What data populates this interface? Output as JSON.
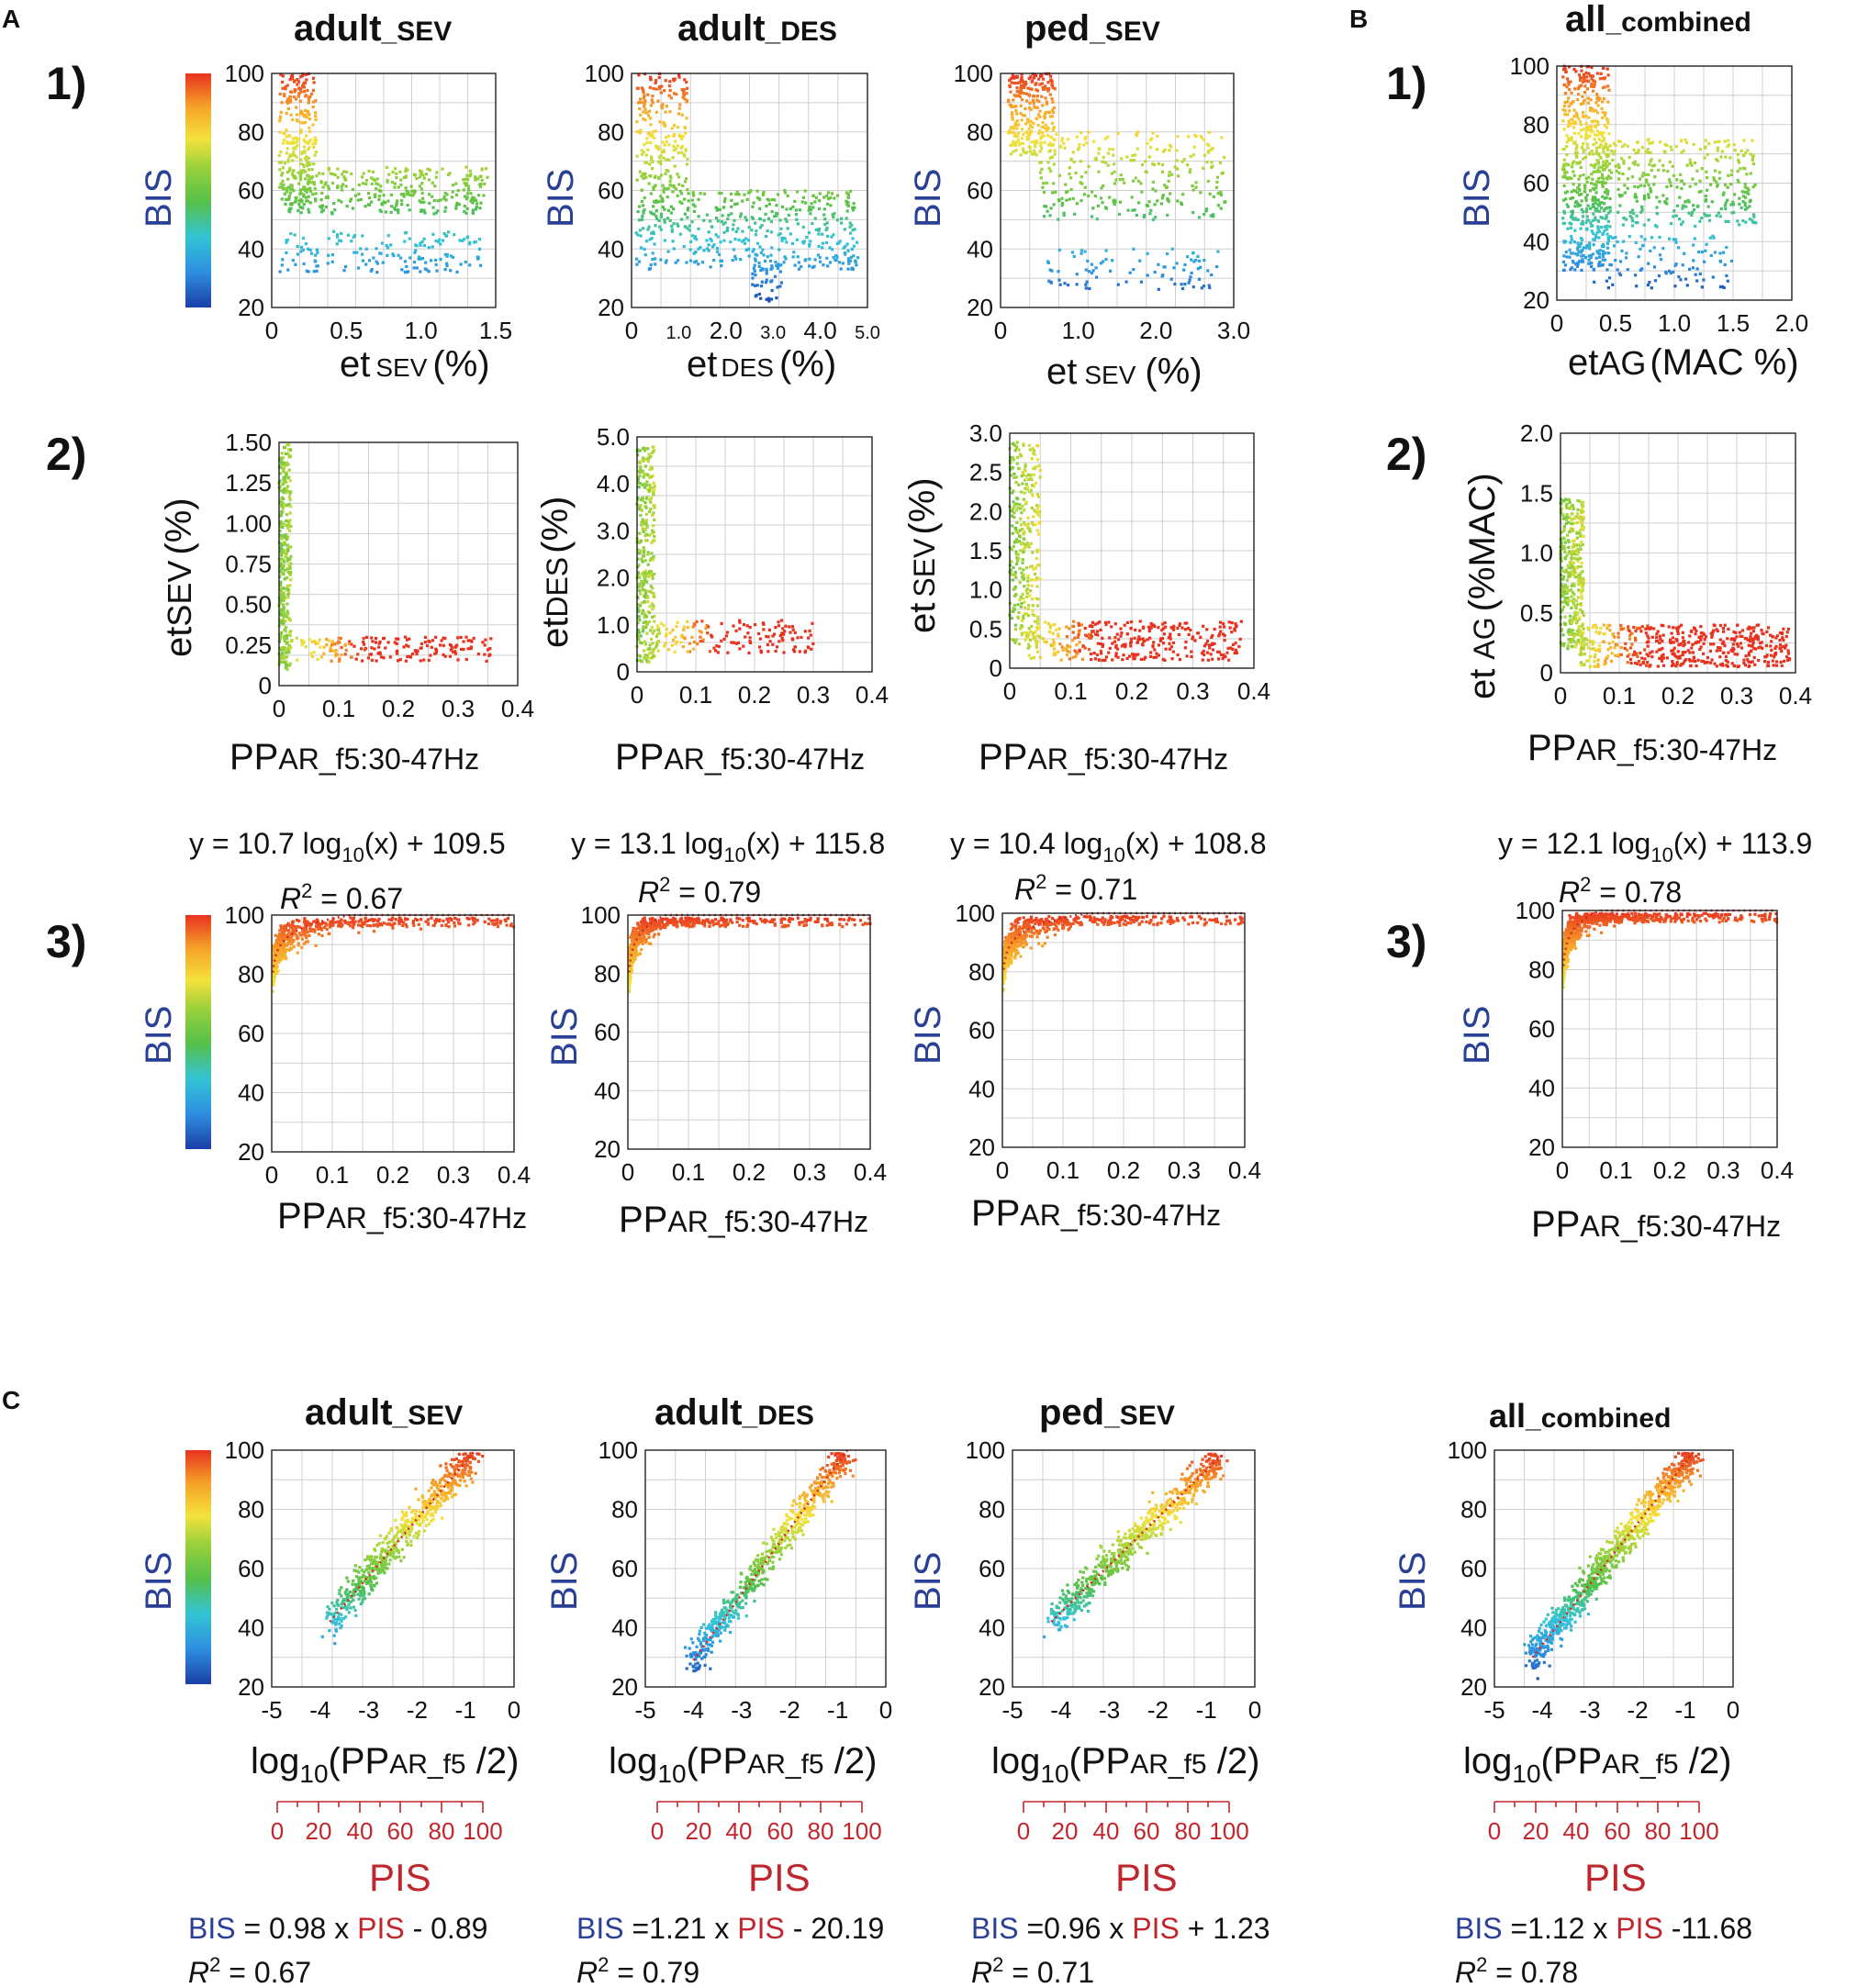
{
  "panel_labels": {
    "A": "A",
    "B": "B",
    "C": "C"
  },
  "row_labels": {
    "r1": "1)",
    "r2": "2)",
    "r3": "3)"
  },
  "column_titles": [
    {
      "main": "adult",
      "sub": "_SEV"
    },
    {
      "main": "adult",
      "sub": "_DES"
    },
    {
      "main": "ped",
      "sub": "_SEV"
    },
    {
      "main": "all",
      "sub": "_combined"
    }
  ],
  "colors": {
    "bis_label": "#2a3f96",
    "pis_label": "#c0272d",
    "fit_line": "#d42a1e",
    "colorbar": [
      "#1a3fa8",
      "#2e8ee0",
      "#33c4d6",
      "#55c04a",
      "#9ad13b",
      "#f4e23c",
      "#f6a128",
      "#e8321f"
    ]
  },
  "labels": {
    "bis": "BIS",
    "pis": "PIS",
    "pp": "PP",
    "pp_sub": "AR_f5:30-47Hz",
    "et": "et",
    "sev_sub": "SEV",
    "des_sub": "DES",
    "ag_sub": "AG",
    "pct": "(%)",
    "mac_pct": "(MAC %)",
    "pct_mac": "(%MAC)",
    "log_prefix": "log",
    "log_sub": "10",
    "log_open": "(PP",
    "log_sub2": "AR_f5",
    "log_close": " /2)",
    "r2_prefix": "R",
    "r2_sup": "2"
  },
  "equations_row3": [
    {
      "lhs": "y = 10.7 log",
      "sub": "10",
      "rhs": "(x) + 109.5",
      "r2": " = 0.67"
    },
    {
      "lhs": "y = 13.1 log",
      "sub": "10",
      "rhs": "(x) + 115.8",
      "r2": " = 0.79"
    },
    {
      "lhs": "y = 10.4 log",
      "sub": "10",
      "rhs": "(x) + 108.8",
      "r2": " = 0.71"
    },
    {
      "lhs": "y = 12.1 log",
      "sub": "10",
      "rhs": "(x) + 113.9",
      "r2": " = 0.78"
    }
  ],
  "equations_c": [
    {
      "bis": "BIS",
      "mid": " = 0.98 x ",
      "pis": "PIS",
      "rest": " - 0.89",
      "r2": " = 0.67"
    },
    {
      "bis": "BIS",
      "mid": " =1.21 x ",
      "pis": "PIS",
      "rest": " - 20.19",
      "r2": " = 0.79"
    },
    {
      "bis": "BIS",
      "mid": " =0.96 x ",
      "pis": "PIS",
      "rest": " + 1.23",
      "r2": " = 0.71"
    },
    {
      "bis": "BIS",
      "mid": " =1.12 x ",
      "pis": "PIS",
      "rest": " -11.68",
      "r2": " = 0.78"
    }
  ],
  "pis_ticks": [
    "0",
    "20",
    "40",
    "60",
    "80",
    "100"
  ],
  "chart_data": [
    {
      "id": "A1_adultSEV",
      "type": "scatter",
      "title": "adult_SEV",
      "xlabel": "etSEV (%)",
      "ylabel": "BIS",
      "xlim": [
        0,
        1.5
      ],
      "ylim": [
        20,
        100
      ],
      "xticks": [
        {
          "v": 0,
          "t": "0"
        },
        {
          "v": 0.5,
          "t": "0.5"
        },
        {
          "v": 1.0,
          "t": "1.0"
        },
        {
          "v": 1.5,
          "t": "1.5"
        }
      ],
      "yticks": [
        "20",
        "40",
        "60",
        "80",
        "100"
      ],
      "clusters": [
        {
          "x": [
            0.05,
            0.3
          ],
          "y": [
            55,
            100
          ],
          "n": 260
        },
        {
          "x": [
            0.1,
            1.45
          ],
          "y": [
            52,
            68
          ],
          "n": 320
        },
        {
          "x": [
            0.05,
            1.4
          ],
          "y": [
            32,
            46
          ],
          "n": 160
        }
      ]
    },
    {
      "id": "A1_adultDES",
      "type": "scatter",
      "title": "adult_DES",
      "xlabel": "etDES (%)",
      "ylabel": "BIS",
      "xlim": [
        0,
        5.0
      ],
      "ylim": [
        20,
        100
      ],
      "xticks": [
        {
          "v": 0,
          "t": "0"
        },
        {
          "v": 1.0,
          "t": "1.0"
        },
        {
          "v": 2.0,
          "t": "2.0"
        },
        {
          "v": 3.0,
          "t": "3.0"
        },
        {
          "v": 4.0,
          "t": "4.0"
        },
        {
          "v": 5.0,
          "t": "5.0"
        }
      ],
      "yticks": [
        "20",
        "40",
        "60",
        "80",
        "100"
      ],
      "clusters": [
        {
          "x": [
            0.1,
            1.2
          ],
          "y": [
            60,
            100
          ],
          "n": 220
        },
        {
          "x": [
            0.1,
            4.8
          ],
          "y": [
            33,
            60
          ],
          "n": 480
        },
        {
          "x": [
            2.5,
            3.2
          ],
          "y": [
            22,
            36
          ],
          "n": 40
        }
      ]
    },
    {
      "id": "A1_pedSEV",
      "type": "scatter",
      "title": "ped_SEV",
      "xlabel": "etSEV (%)",
      "ylabel": "BIS",
      "xlim": [
        0,
        3.0
      ],
      "ylim": [
        20,
        100
      ],
      "xticks": [
        {
          "v": 0,
          "t": "0"
        },
        {
          "v": 1.0,
          "t": "1.0"
        },
        {
          "v": 2.0,
          "t": "2.0"
        },
        {
          "v": 3.0,
          "t": "3.0"
        }
      ],
      "yticks": [
        "20",
        "40",
        "60",
        "80",
        "100"
      ],
      "clusters": [
        {
          "x": [
            0.1,
            0.7
          ],
          "y": [
            72,
            100
          ],
          "n": 260
        },
        {
          "x": [
            0.5,
            2.9
          ],
          "y": [
            50,
            80
          ],
          "n": 280
        },
        {
          "x": [
            0.6,
            2.8
          ],
          "y": [
            26,
            40
          ],
          "n": 90
        }
      ]
    },
    {
      "id": "B1_all",
      "type": "scatter",
      "title": "all_combined",
      "xlabel": "etAG (MAC %)",
      "ylabel": "BIS",
      "xlim": [
        0,
        2.0
      ],
      "ylim": [
        20,
        100
      ],
      "xticks": [
        {
          "v": 0,
          "t": "0"
        },
        {
          "v": 0.5,
          "t": "0.5"
        },
        {
          "v": 1.0,
          "t": "1.0"
        },
        {
          "v": 1.5,
          "t": "1.5"
        },
        {
          "v": 2.0,
          "t": "2.0"
        }
      ],
      "yticks": [
        "20",
        "40",
        "60",
        "80",
        "100"
      ],
      "clusters": [
        {
          "x": [
            0.05,
            0.45
          ],
          "y": [
            30,
            100
          ],
          "n": 520
        },
        {
          "x": [
            0.3,
            1.7
          ],
          "y": [
            45,
            75
          ],
          "n": 380
        },
        {
          "x": [
            0.3,
            1.5
          ],
          "y": [
            24,
            42
          ],
          "n": 110
        }
      ]
    },
    {
      "id": "A2_adultSEV",
      "type": "scatter",
      "xlabel": "PPAR_f5:30-47Hz",
      "ylabel": "etSEV (%)",
      "xlim": [
        0,
        0.4
      ],
      "ylim": [
        0,
        1.5
      ],
      "xticks": [
        {
          "v": 0,
          "t": "0"
        },
        {
          "v": 0.1,
          "t": "0.1"
        },
        {
          "v": 0.2,
          "t": "0.2"
        },
        {
          "v": 0.3,
          "t": "0.3"
        },
        {
          "v": 0.4,
          "t": "0.4"
        }
      ],
      "yticks": [
        "0",
        "0.25",
        "0.50",
        "0.75",
        "1.00",
        "1.25",
        "1.50"
      ],
      "clusters": [
        {
          "x": [
            0.0,
            0.02
          ],
          "y": [
            0.1,
            1.5
          ],
          "n": 320
        },
        {
          "x": [
            0.02,
            0.36
          ],
          "y": [
            0.15,
            0.3
          ],
          "n": 180
        }
      ]
    },
    {
      "id": "A2_adultDES",
      "type": "scatter",
      "xlabel": "PPAR_f5:30-47Hz",
      "ylabel": "etDES (%)",
      "xlim": [
        0,
        0.4
      ],
      "ylim": [
        0,
        5.0
      ],
      "xticks": [
        {
          "v": 0,
          "t": "0"
        },
        {
          "v": 0.1,
          "t": "0.1"
        },
        {
          "v": 0.2,
          "t": "0.2"
        },
        {
          "v": 0.3,
          "t": "0.3"
        },
        {
          "v": 0.4,
          "t": "0.4"
        }
      ],
      "yticks": [
        "0",
        "1.0",
        "2.0",
        "3.0",
        "4.0",
        "5.0"
      ],
      "clusters": [
        {
          "x": [
            0.0,
            0.03
          ],
          "y": [
            0.2,
            4.8
          ],
          "n": 320
        },
        {
          "x": [
            0.03,
            0.3
          ],
          "y": [
            0.4,
            1.1
          ],
          "n": 160
        }
      ]
    },
    {
      "id": "A2_pedSEV",
      "type": "scatter",
      "xlabel": "PPAR_f5:30-47Hz",
      "ylabel": "etSEV (%)",
      "xlim": [
        0,
        0.4
      ],
      "ylim": [
        0,
        3.0
      ],
      "xticks": [
        {
          "v": 0,
          "t": "0"
        },
        {
          "v": 0.1,
          "t": "0.1"
        },
        {
          "v": 0.2,
          "t": "0.2"
        },
        {
          "v": 0.3,
          "t": "0.3"
        },
        {
          "v": 0.4,
          "t": "0.4"
        }
      ],
      "yticks": [
        "0",
        "0.5",
        "1.0",
        "1.5",
        "2.0",
        "2.5",
        "3.0"
      ],
      "clusters": [
        {
          "x": [
            0.0,
            0.05
          ],
          "y": [
            0.3,
            2.9
          ],
          "n": 320
        },
        {
          "x": [
            0.03,
            0.38
          ],
          "y": [
            0.1,
            0.6
          ],
          "n": 340
        }
      ]
    },
    {
      "id": "B2_all",
      "type": "scatter",
      "xlabel": "PPAR_f5:30-47Hz",
      "ylabel": "etAG (%MAC)",
      "xlim": [
        0,
        0.4
      ],
      "ylim": [
        0,
        2.0
      ],
      "xticks": [
        {
          "v": 0,
          "t": "0"
        },
        {
          "v": 0.1,
          "t": "0.1"
        },
        {
          "v": 0.2,
          "t": "0.2"
        },
        {
          "v": 0.3,
          "t": "0.3"
        },
        {
          "v": 0.4,
          "t": "0.4"
        }
      ],
      "yticks": [
        "0",
        "0.5",
        "1.0",
        "1.5",
        "2.0"
      ],
      "clusters": [
        {
          "x": [
            0.0,
            0.04
          ],
          "y": [
            0.2,
            1.45
          ],
          "n": 360
        },
        {
          "x": [
            0.03,
            0.39
          ],
          "y": [
            0.05,
            0.4
          ],
          "n": 480
        }
      ]
    },
    {
      "id": "A3_adultSEV",
      "type": "scatter",
      "xlabel": "PPAR_f5:30-47Hz",
      "ylabel": "BIS",
      "xlim": [
        0,
        0.4
      ],
      "ylim": [
        20,
        100
      ],
      "fit": {
        "a": 10.7,
        "b": 109.5
      },
      "xticks": [
        {
          "v": 0,
          "t": "0"
        },
        {
          "v": 0.1,
          "t": "0.1"
        },
        {
          "v": 0.2,
          "t": "0.2"
        },
        {
          "v": 0.3,
          "t": "0.3"
        },
        {
          "v": 0.4,
          "t": "0.4"
        }
      ],
      "yticks": [
        "20",
        "40",
        "60",
        "80",
        "100"
      ],
      "n": 620
    },
    {
      "id": "A3_adultDES",
      "type": "scatter",
      "xlabel": "PPAR_f5:30-47Hz",
      "ylabel": "BIS",
      "xlim": [
        0,
        0.4
      ],
      "ylim": [
        20,
        100
      ],
      "fit": {
        "a": 13.1,
        "b": 115.8
      },
      "xticks": [
        {
          "v": 0,
          "t": "0"
        },
        {
          "v": 0.1,
          "t": "0.1"
        },
        {
          "v": 0.2,
          "t": "0.2"
        },
        {
          "v": 0.3,
          "t": "0.3"
        },
        {
          "v": 0.4,
          "t": "0.4"
        }
      ],
      "yticks": [
        "20",
        "40",
        "60",
        "80",
        "100"
      ],
      "n": 620
    },
    {
      "id": "A3_pedSEV",
      "type": "scatter",
      "xlabel": "PPAR_f5:30-47Hz",
      "ylabel": "BIS",
      "xlim": [
        0,
        0.4
      ],
      "ylim": [
        20,
        100
      ],
      "fit": {
        "a": 10.4,
        "b": 108.8
      },
      "xticks": [
        {
          "v": 0,
          "t": "0"
        },
        {
          "v": 0.1,
          "t": "0.1"
        },
        {
          "v": 0.2,
          "t": "0.2"
        },
        {
          "v": 0.3,
          "t": "0.3"
        },
        {
          "v": 0.4,
          "t": "0.4"
        }
      ],
      "yticks": [
        "20",
        "40",
        "60",
        "80",
        "100"
      ],
      "n": 700
    },
    {
      "id": "B3_all",
      "type": "scatter",
      "xlabel": "PPAR_f5:30-47Hz",
      "ylabel": "BIS",
      "xlim": [
        0,
        0.4
      ],
      "ylim": [
        20,
        100
      ],
      "fit": {
        "a": 12.1,
        "b": 113.9
      },
      "xticks": [
        {
          "v": 0,
          "t": "0"
        },
        {
          "v": 0.1,
          "t": "0.1"
        },
        {
          "v": 0.2,
          "t": "0.2"
        },
        {
          "v": 0.3,
          "t": "0.3"
        },
        {
          "v": 0.4,
          "t": "0.4"
        }
      ],
      "yticks": [
        "20",
        "40",
        "60",
        "80",
        "100"
      ],
      "n": 900
    },
    {
      "id": "C_adultSEV",
      "type": "scatter",
      "xlabel": "log10(PPAR_f5 /2)",
      "ylabel": "BIS",
      "xlim": [
        -5,
        0
      ],
      "ylim": [
        20,
        100
      ],
      "line": {
        "x0": -3.8,
        "y0": 42,
        "x1": -0.8,
        "y1": 100
      },
      "xticks": [
        {
          "v": -5,
          "t": "-5"
        },
        {
          "v": -4,
          "t": "-4"
        },
        {
          "v": -3,
          "t": "-3"
        },
        {
          "v": -2,
          "t": "-2"
        },
        {
          "v": -1,
          "t": "-1"
        },
        {
          "v": 0,
          "t": "0"
        }
      ],
      "yticks": [
        "20",
        "40",
        "60",
        "80",
        "100"
      ],
      "n": 620
    },
    {
      "id": "C_adultDES",
      "type": "scatter",
      "xlabel": "log10(PPAR_f5 /2)",
      "ylabel": "BIS",
      "xlim": [
        -5,
        0
      ],
      "ylim": [
        20,
        100
      ],
      "line": {
        "x0": -4.0,
        "y0": 29,
        "x1": -0.8,
        "y1": 100
      },
      "xticks": [
        {
          "v": -5,
          "t": "-5"
        },
        {
          "v": -4,
          "t": "-4"
        },
        {
          "v": -3,
          "t": "-3"
        },
        {
          "v": -2,
          "t": "-2"
        },
        {
          "v": -1,
          "t": "-1"
        },
        {
          "v": 0,
          "t": "0"
        }
      ],
      "yticks": [
        "20",
        "40",
        "60",
        "80",
        "100"
      ],
      "n": 620
    },
    {
      "id": "C_pedSEV",
      "type": "scatter",
      "xlabel": "log10(PPAR_f5 /2)",
      "ylabel": "BIS",
      "xlim": [
        -5,
        0
      ],
      "ylim": [
        20,
        100
      ],
      "line": {
        "x0": -4.2,
        "y0": 42,
        "x1": -0.7,
        "y1": 98
      },
      "xticks": [
        {
          "v": -5,
          "t": "-5"
        },
        {
          "v": -4,
          "t": "-4"
        },
        {
          "v": -3,
          "t": "-3"
        },
        {
          "v": -2,
          "t": "-2"
        },
        {
          "v": -1,
          "t": "-1"
        },
        {
          "v": 0,
          "t": "0"
        }
      ],
      "yticks": [
        "20",
        "40",
        "60",
        "80",
        "100"
      ],
      "n": 620
    },
    {
      "id": "C_all",
      "type": "scatter",
      "xlabel": "log10(PPAR_f5 /2)",
      "ylabel": "BIS",
      "xlim": [
        -5,
        0
      ],
      "ylim": [
        20,
        100
      ],
      "line": {
        "x0": -4.2,
        "y0": 30,
        "x1": -0.8,
        "y1": 100
      },
      "xticks": [
        {
          "v": -5,
          "t": "-5"
        },
        {
          "v": -4,
          "t": "-4"
        },
        {
          "v": -3,
          "t": "-3"
        },
        {
          "v": -2,
          "t": "-2"
        },
        {
          "v": -1,
          "t": "-1"
        },
        {
          "v": 0,
          "t": "0"
        }
      ],
      "yticks": [
        "20",
        "40",
        "60",
        "80",
        "100"
      ],
      "n": 900
    }
  ]
}
